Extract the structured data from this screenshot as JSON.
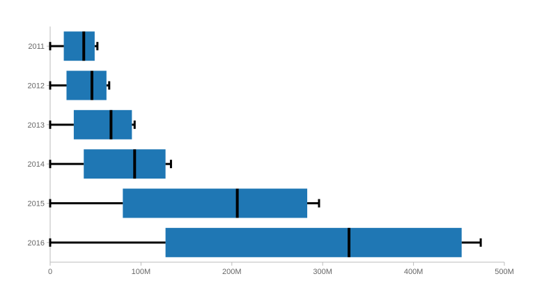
{
  "chart_data": {
    "type": "boxplot",
    "orientation": "horizontal",
    "categories": [
      "2011",
      "2012",
      "2013",
      "2014",
      "2015",
      "2016"
    ],
    "series": [
      {
        "values": [
          {
            "category": "2011",
            "min": 0,
            "q1": 15000000,
            "median": 37000000,
            "q3": 49000000,
            "max": 52000000
          },
          {
            "category": "2012",
            "min": 0,
            "q1": 18000000,
            "median": 46000000,
            "q3": 62000000,
            "max": 65000000
          },
          {
            "category": "2013",
            "min": 0,
            "q1": 26000000,
            "median": 67000000,
            "q3": 90000000,
            "max": 93000000
          },
          {
            "category": "2014",
            "min": 0,
            "q1": 37000000,
            "median": 93000000,
            "q3": 127000000,
            "max": 133000000
          },
          {
            "category": "2015",
            "min": 0,
            "q1": 80000000,
            "median": 206000000,
            "q3": 283000000,
            "max": 296000000
          },
          {
            "category": "2016",
            "min": 0,
            "q1": 127000000,
            "median": 329000000,
            "q3": 453000000,
            "max": 474000000
          }
        ]
      }
    ],
    "xaxis": {
      "range": [
        0,
        500000000
      ],
      "ticks": [
        0,
        100000000,
        200000000,
        300000000,
        400000000,
        500000000
      ],
      "tick_labels": [
        "0",
        "100M",
        "200M",
        "300M",
        "400M",
        "500M"
      ]
    },
    "grid": false,
    "legend": "none",
    "colors": {
      "box": "#1f77b4",
      "line": "#000000",
      "axis": "#bbbbbb",
      "text": "#666666"
    }
  }
}
